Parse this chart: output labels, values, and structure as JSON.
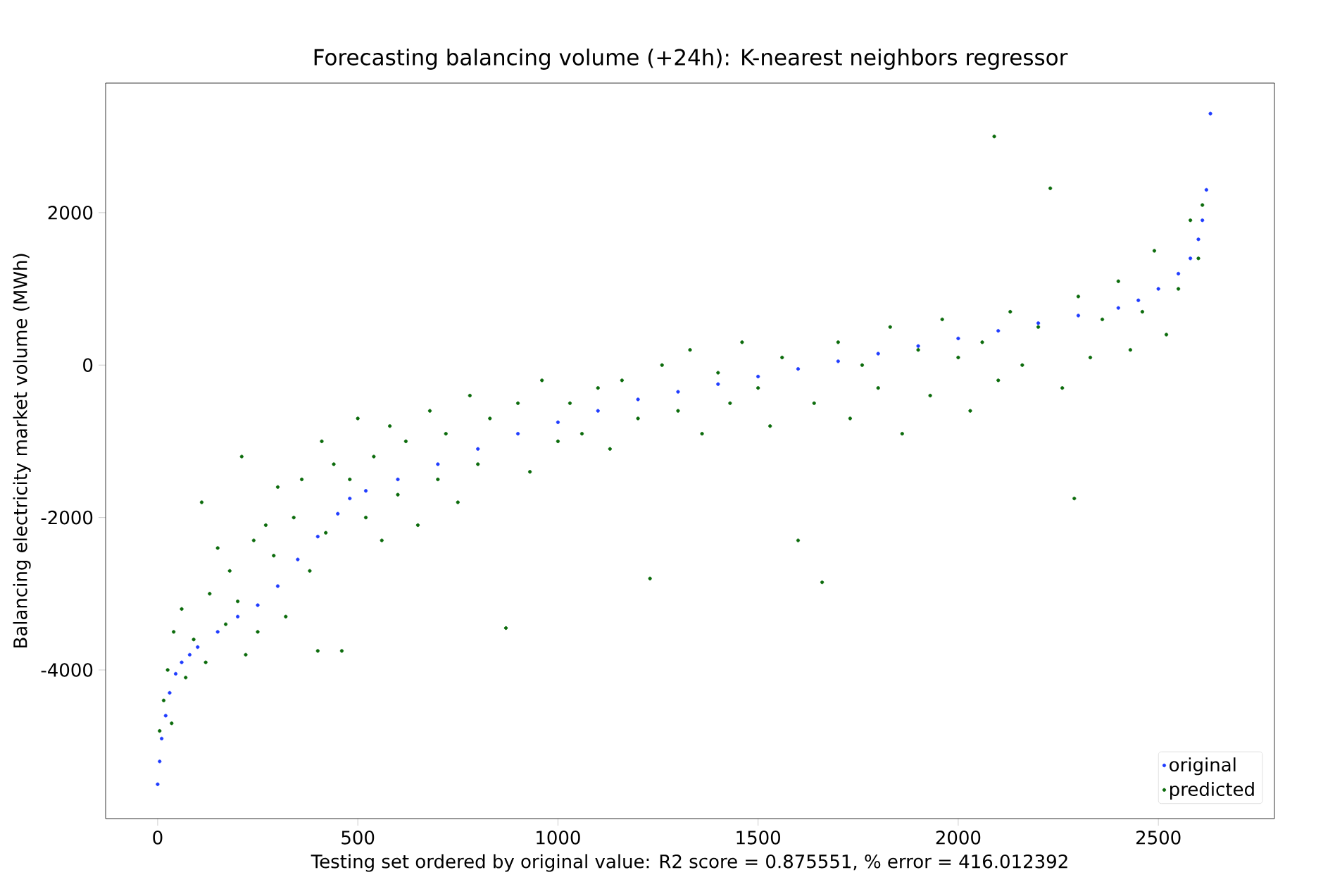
{
  "chart_data": {
    "type": "scatter",
    "title": "Forecasting balancing volume (+24h): K-nearest neighbors regressor",
    "xlabel": "Testing set ordered by original value: R2 score = 0.875551, % error = 416.012392",
    "ylabel": "Balancing electricity market volume (MWh)",
    "xlim": [
      -130,
      2790
    ],
    "ylim": [
      -5950,
      3700
    ],
    "xticks": [
      0,
      500,
      1000,
      1500,
      2000,
      2500
    ],
    "yticks": [
      -4000,
      -2000,
      0,
      2000
    ],
    "legend": "bottom right",
    "marker": "circle",
    "grid": false,
    "series": [
      {
        "name": "original",
        "color": "#1f3cff",
        "x": [
          0,
          5,
          10,
          20,
          30,
          45,
          60,
          80,
          100,
          150,
          200,
          250,
          300,
          350,
          400,
          450,
          480,
          520,
          600,
          700,
          800,
          900,
          1000,
          1100,
          1200,
          1300,
          1400,
          1500,
          1600,
          1700,
          1800,
          1900,
          2000,
          2100,
          2200,
          2300,
          2400,
          2450,
          2500,
          2550,
          2580,
          2600,
          2610,
          2620,
          2630
        ],
        "values": [
          -5500,
          -5200,
          -4900,
          -4600,
          -4300,
          -4050,
          -3900,
          -3800,
          -3700,
          -3500,
          -3300,
          -3150,
          -2900,
          -2550,
          -2250,
          -1950,
          -1750,
          -1650,
          -1500,
          -1300,
          -1100,
          -900,
          -750,
          -600,
          -450,
          -350,
          -250,
          -150,
          -50,
          50,
          150,
          250,
          350,
          450,
          550,
          650,
          750,
          850,
          1000,
          1200,
          1400,
          1650,
          1900,
          2300,
          3300
        ]
      },
      {
        "name": "predicted",
        "color": "#0b6b0b",
        "x": [
          5,
          15,
          25,
          35,
          40,
          60,
          70,
          90,
          110,
          120,
          130,
          150,
          170,
          180,
          200,
          210,
          220,
          240,
          250,
          270,
          290,
          300,
          320,
          340,
          360,
          380,
          400,
          410,
          420,
          440,
          460,
          480,
          500,
          520,
          540,
          560,
          580,
          600,
          620,
          650,
          680,
          700,
          720,
          750,
          780,
          800,
          830,
          870,
          900,
          930,
          960,
          1000,
          1030,
          1060,
          1100,
          1130,
          1160,
          1200,
          1230,
          1260,
          1300,
          1330,
          1360,
          1400,
          1430,
          1460,
          1500,
          1530,
          1560,
          1600,
          1640,
          1660,
          1700,
          1730,
          1760,
          1800,
          1830,
          1860,
          1900,
          1930,
          1960,
          2000,
          2030,
          2060,
          2090,
          2100,
          2130,
          2160,
          2200,
          2230,
          2260,
          2290,
          2300,
          2330,
          2360,
          2400,
          2430,
          2460,
          2490,
          2520,
          2550,
          2580,
          2600,
          2610
        ],
        "values": [
          -4800,
          -4400,
          -4000,
          -4700,
          -3500,
          -3200,
          -4100,
          -3600,
          -1800,
          -3900,
          -3000,
          -2400,
          -3400,
          -2700,
          -3100,
          -1200,
          -3800,
          -2300,
          -3500,
          -2100,
          -2500,
          -1600,
          -3300,
          -2000,
          -1500,
          -2700,
          -3750,
          -1000,
          -2200,
          -1300,
          -3750,
          -1500,
          -700,
          -2000,
          -1200,
          -2300,
          -800,
          -1700,
          -1000,
          -2100,
          -600,
          -1500,
          -900,
          -1800,
          -400,
          -1300,
          -700,
          -3450,
          -500,
          -1400,
          -200,
          -1000,
          -500,
          -900,
          -300,
          -1100,
          -200,
          -700,
          -2800,
          0,
          -600,
          200,
          -900,
          -100,
          -500,
          300,
          -300,
          -800,
          100,
          -2300,
          -500,
          -2850,
          300,
          -700,
          0,
          -300,
          500,
          -900,
          200,
          -400,
          600,
          100,
          -600,
          300,
          3000,
          -200,
          700,
          0,
          500,
          2320,
          -300,
          -1750,
          900,
          100,
          600,
          1100,
          200,
          700,
          1500,
          400,
          1000,
          1900,
          1400,
          2100
        ]
      }
    ]
  }
}
